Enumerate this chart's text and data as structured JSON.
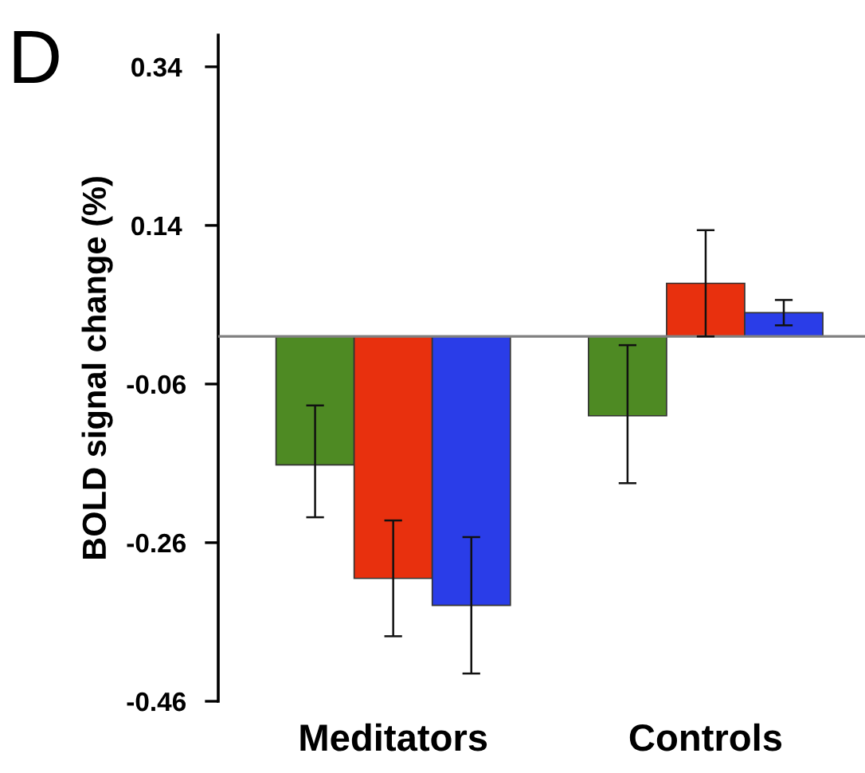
{
  "chart_data": {
    "type": "bar",
    "ylabel": "BOLD signal change (%)",
    "annotations": [
      "D"
    ],
    "categories": [
      "Meditators",
      "Controls"
    ],
    "series": [
      {
        "color": "#4e8a23",
        "values": [
          -0.162,
          -0.1
        ],
        "errors": [
          [
            -0.228,
            -0.087
          ],
          [
            -0.185,
            -0.011
          ]
        ]
      },
      {
        "color": "#e8300e",
        "values": [
          -0.305,
          0.067
        ],
        "errors": [
          [
            -0.378,
            -0.232
          ],
          [
            0.0,
            0.134
          ]
        ]
      },
      {
        "color": "#2a3de8",
        "values": [
          -0.339,
          0.03
        ],
        "errors": [
          [
            -0.425,
            -0.253
          ],
          [
            0.014,
            0.046
          ]
        ]
      }
    ],
    "ylim": [
      -0.46,
      0.38
    ],
    "yticks": [
      -0.46,
      -0.26,
      -0.06,
      0.14,
      0.34
    ],
    "ref_lines": [
      {
        "axis": "y",
        "value": 0,
        "color": "#808080"
      }
    ],
    "grid": false,
    "legend": false
  }
}
